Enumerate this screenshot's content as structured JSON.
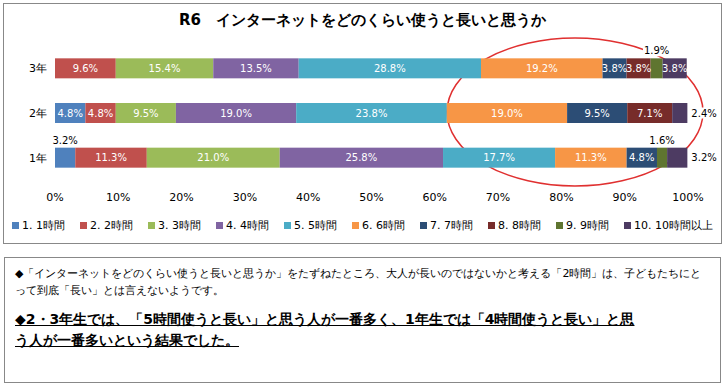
{
  "chart_data": {
    "type": "bar",
    "title": "R6　インターネットをどのくらい使うと長いと思うか",
    "orientation": "horizontal",
    "stacked": true,
    "grid": false,
    "legend": "bottom",
    "data_labels": true,
    "categories": [
      "3年",
      "2年",
      "1年"
    ],
    "xlim": [
      0,
      100
    ],
    "xticks": [
      {
        "value": 0,
        "label": "0%"
      },
      {
        "value": 10,
        "label": "10%"
      },
      {
        "value": 20,
        "label": "20%"
      },
      {
        "value": 30,
        "label": "30%"
      },
      {
        "value": 40,
        "label": "40%"
      },
      {
        "value": 50,
        "label": "50%"
      },
      {
        "value": 60,
        "label": "60%"
      },
      {
        "value": 70,
        "label": "70%"
      },
      {
        "value": 80,
        "label": "80%"
      },
      {
        "value": 90,
        "label": "90%"
      },
      {
        "value": 100,
        "label": "100%"
      }
    ],
    "series": [
      {
        "name": "1. 1時間",
        "color": "#4f81bd",
        "values": [
          0,
          4.8,
          3.2
        ],
        "value_labels": [
          null,
          "4.8%",
          "3.2%"
        ]
      },
      {
        "name": "2. 2時間",
        "color": "#c0504d",
        "values": [
          9.6,
          4.8,
          11.3
        ],
        "value_labels": [
          "9.6%",
          "4.8%",
          "11.3%"
        ]
      },
      {
        "name": "3. 3時間",
        "color": "#9bbb59",
        "values": [
          15.4,
          9.5,
          21.0
        ],
        "value_labels": [
          "15.4%",
          "9.5%",
          "21.0%"
        ]
      },
      {
        "name": "4. 4時間",
        "color": "#8064a2",
        "values": [
          13.5,
          19.0,
          25.8
        ],
        "value_labels": [
          "13.5%",
          "19.0%",
          "25.8%"
        ]
      },
      {
        "name": "5. 5時間",
        "color": "#4bacc6",
        "values": [
          28.8,
          23.8,
          17.7
        ],
        "value_labels": [
          "28.8%",
          "23.8%",
          "17.7%"
        ]
      },
      {
        "name": "6. 6時間",
        "color": "#f79646",
        "values": [
          19.2,
          19.0,
          11.3
        ],
        "value_labels": [
          "19.2%",
          "19.0%",
          "11.3%"
        ]
      },
      {
        "name": "7. 7時間",
        "color": "#2c4d75",
        "values": [
          3.8,
          9.5,
          4.8
        ],
        "value_labels": [
          "3.8%",
          "9.5%",
          "4.8%"
        ]
      },
      {
        "name": "8. 8時間",
        "color": "#772c2a",
        "values": [
          3.8,
          7.1,
          0
        ],
        "value_labels": [
          "3.8%",
          "7.1%",
          null
        ]
      },
      {
        "name": "9. 9時間",
        "color": "#5f7530",
        "values": [
          1.9,
          0,
          1.6
        ],
        "value_labels": [
          "1.9%",
          null,
          "1.6%"
        ]
      },
      {
        "name": "10. 10時間以上",
        "color": "#4d3b62",
        "values": [
          3.8,
          2.4,
          3.2
        ],
        "value_labels": [
          "3.8%",
          "2.4%",
          "3.2%"
        ]
      }
    ]
  },
  "notes": [
    "◆「インターネットをどのくらい使うと長いと思うか」をたずねたところ、大人が長いのではないかと考える「2時間」は、子どもたちにとって到底「長い」とは言えないようです。",
    "◆2・3年生では、「5時間使うと長い」と思う人が一番多く、1年生では「4時間使うと長い」と思う人が一番多いという結果でした。"
  ]
}
